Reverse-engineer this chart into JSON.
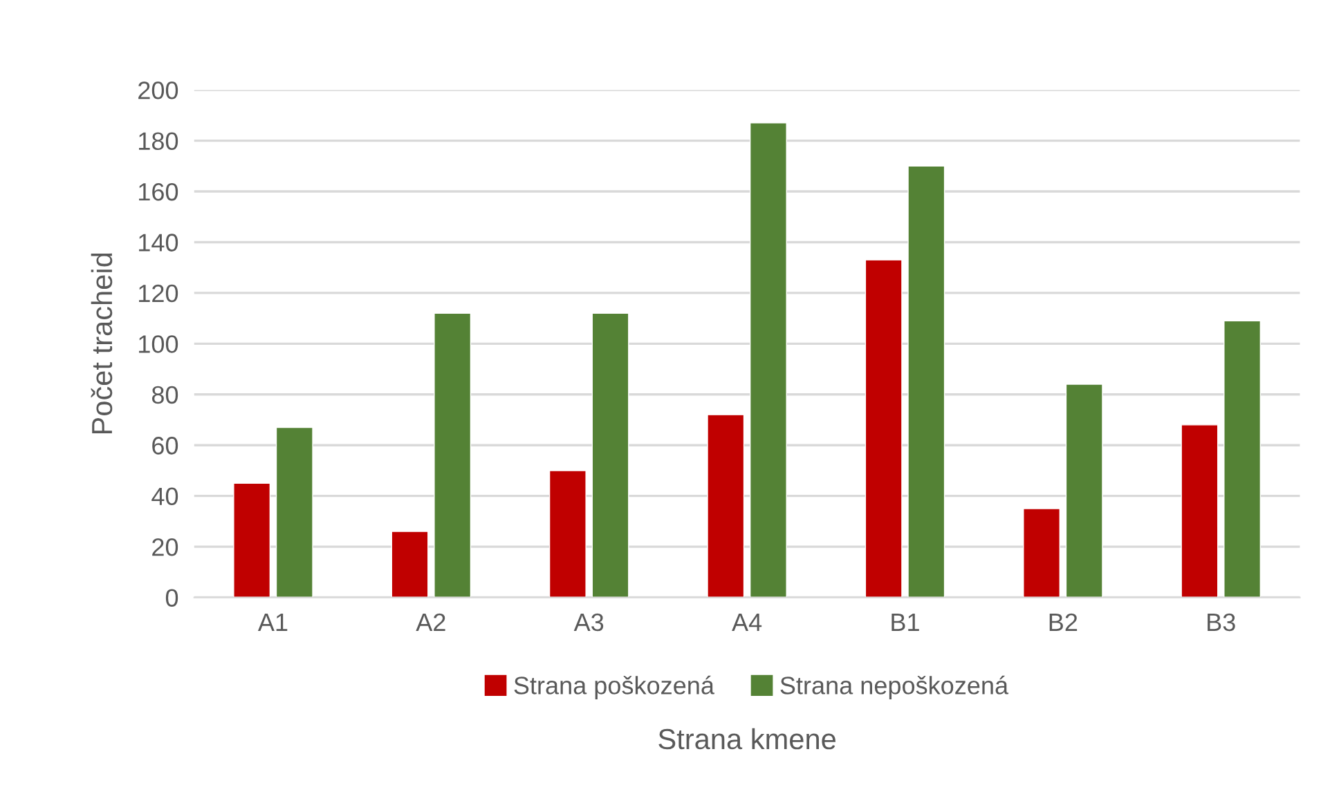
{
  "chart_data": {
    "type": "bar",
    "xlabel": "Strana kmene",
    "ylabel": "Počet tracheid",
    "categories": [
      "A1",
      "A2",
      "A3",
      "A4",
      "B1",
      "B2",
      "B3"
    ],
    "series": [
      {
        "name": "Strana poškozená",
        "color": "#c00000",
        "values": [
          45,
          26,
          50,
          72,
          133,
          35,
          68
        ]
      },
      {
        "name": "Strana nepoškozená",
        "color": "#548235",
        "values": [
          67,
          112,
          112,
          187,
          170,
          84,
          109
        ]
      }
    ],
    "ylim": [
      0,
      200
    ],
    "yticks": [
      0,
      20,
      40,
      60,
      80,
      100,
      120,
      140,
      160,
      180,
      200
    ],
    "grid": "y",
    "legend": "bottom"
  }
}
